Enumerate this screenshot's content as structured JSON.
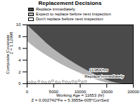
{
  "chart_data": {
    "type": "area",
    "title": "Replacement Decisions",
    "xlabel": "Working Age = 11653 (hr)",
    "ylabel": [
      "Composite Covariate",
      "Z = 1.12998"
    ],
    "caption": "Z = 0.002742*Fe + 5.3955e-005*CorrSed",
    "x": [
      0,
      2000,
      4000,
      6000,
      8000,
      10000,
      12000,
      14000,
      16000,
      18000,
      20000
    ],
    "series": [
      {
        "name": "Don't replace before next inspection",
        "color": "#ffffff",
        "lower": [
          0,
          0,
          0,
          0,
          0,
          0,
          0,
          0,
          0,
          0,
          0
        ],
        "values": [
          7.2,
          5.8,
          4.6,
          3.5,
          2.6,
          1.8,
          1.0,
          0.4,
          0,
          0,
          0
        ]
      },
      {
        "name": "Expect to replace before next inspection",
        "color": "#b4b4b4",
        "lower": [
          7.2,
          5.8,
          4.6,
          3.5,
          2.6,
          1.8,
          1.0,
          0.4,
          0,
          0,
          0
        ],
        "values": [
          10,
          8.3,
          6.6,
          5.2,
          4.0,
          2.9,
          1.9,
          1.0,
          0.3,
          0,
          0
        ]
      },
      {
        "name": "Replace immediately",
        "color": "#4a4a4a",
        "lower": [
          10,
          8.3,
          6.6,
          5.2,
          4.0,
          2.9,
          1.9,
          1.0,
          0.3,
          0,
          0
        ],
        "values": [
          10,
          10,
          10,
          10,
          10,
          10,
          10,
          10,
          10,
          10,
          10
        ]
      }
    ],
    "points": {
      "color": "#ffffff",
      "x": [
        300,
        900,
        1500,
        2200,
        2900,
        3500,
        4200,
        4800,
        5500,
        6100,
        6800,
        7400,
        8000,
        8600,
        9200,
        9800,
        10400,
        11000
      ],
      "y": [
        0.2,
        0.3,
        0.2,
        0.4,
        0.3,
        0.2,
        0.3,
        0.5,
        0.3,
        0.2,
        0.4,
        0.3,
        0.2,
        0.4,
        0.3,
        0.5,
        0.3,
        0.4
      ]
    },
    "annotations": [
      {
        "text": "11384 hrs",
        "x": 13500,
        "y": 2.3
      },
      {
        "text": "Replace immediately",
        "x": 14500,
        "y": 1.2
      }
    ],
    "xlim": [
      0,
      20000
    ],
    "xticks": [
      0,
      5000,
      10000,
      15000,
      20000
    ],
    "ylim": [
      0,
      10
    ],
    "yticks": [
      0,
      2,
      4,
      6,
      8,
      10
    ],
    "legend": "top"
  }
}
